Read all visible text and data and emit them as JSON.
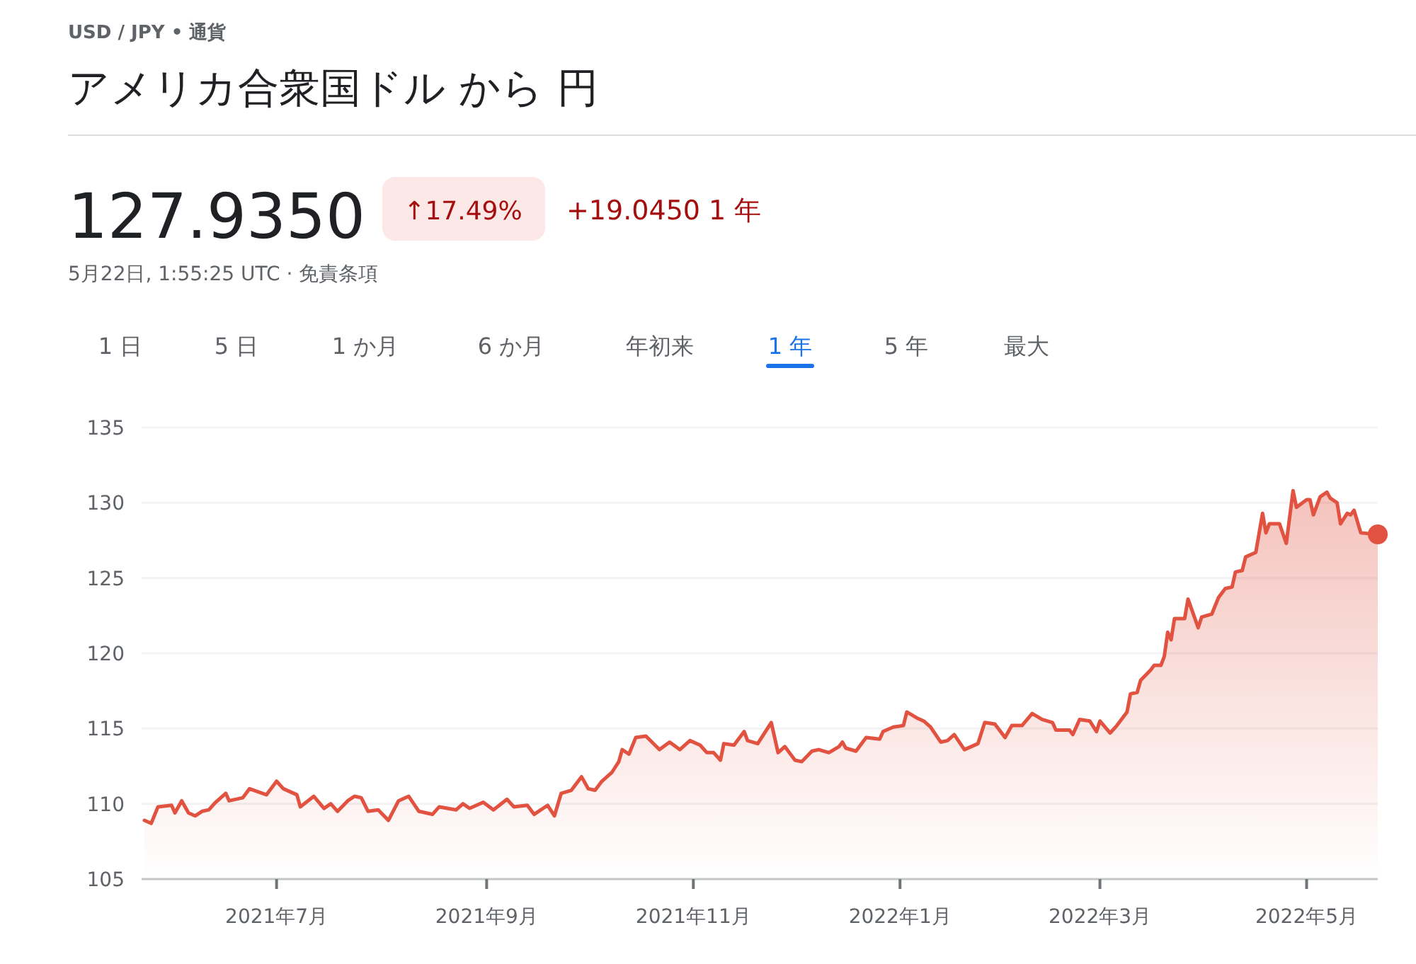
{
  "chart_data": {
    "type": "area",
    "subtitle": "USD / JPY • 通貨",
    "title": "アメリカ合衆国ドル から 円",
    "annotations": [
      "127.9350",
      "↑17.49%",
      "+19.0450 1 年",
      "5月22日, 1:55:25 UTC · 免責条項",
      "1 日",
      "5 日",
      "1 か月",
      "6 か月",
      "年初来",
      "1 年",
      "5 年",
      "最大"
    ],
    "x": [
      "2021-05-23",
      "2021-05-25",
      "2021-05-27",
      "2021-05-31",
      "2021-06-01",
      "2021-06-03",
      "2021-06-05",
      "2021-06-07",
      "2021-06-09",
      "2021-06-11",
      "2021-06-13",
      "2021-06-16",
      "2021-06-17",
      "2021-06-21",
      "2021-06-23",
      "2021-06-28",
      "2021-07-01",
      "2021-07-03",
      "2021-07-07",
      "2021-07-08",
      "2021-07-12",
      "2021-07-15",
      "2021-07-17",
      "2021-07-19",
      "2021-07-22",
      "2021-07-24",
      "2021-07-26",
      "2021-07-28",
      "2021-07-31",
      "2021-08-03",
      "2021-08-06",
      "2021-08-09",
      "2021-08-12",
      "2021-08-16",
      "2021-08-18",
      "2021-08-23",
      "2021-08-25",
      "2021-08-27",
      "2021-08-31",
      "2021-09-03",
      "2021-09-07",
      "2021-09-09",
      "2021-09-13",
      "2021-09-15",
      "2021-09-19",
      "2021-09-21",
      "2021-09-23",
      "2021-09-26",
      "2021-09-29",
      "2021-10-01",
      "2021-10-03",
      "2021-10-05",
      "2021-10-08",
      "2021-10-10",
      "2021-10-11",
      "2021-10-13",
      "2021-10-15",
      "2021-10-18",
      "2021-10-22",
      "2021-10-25",
      "2021-10-28",
      "2021-10-31",
      "2021-11-03",
      "2021-11-05",
      "2021-11-07",
      "2021-11-09",
      "2021-11-10",
      "2021-11-13",
      "2021-11-16",
      "2021-11-17",
      "2021-11-20",
      "2021-11-24",
      "2021-11-26",
      "2021-11-28",
      "2021-12-01",
      "2021-12-03",
      "2021-12-06",
      "2021-12-08",
      "2021-12-11",
      "2021-12-14",
      "2021-12-15",
      "2021-12-16",
      "2021-12-19",
      "2021-12-22",
      "2021-12-26",
      "2021-12-27",
      "2021-12-30",
      "2022-01-02",
      "2022-01-03",
      "2022-01-06",
      "2022-01-08",
      "2022-01-10",
      "2022-01-13",
      "2022-01-15",
      "2022-01-17",
      "2022-01-20",
      "2022-01-24",
      "2022-01-26",
      "2022-01-29",
      "2022-02-01",
      "2022-02-03",
      "2022-02-06",
      "2022-02-09",
      "2022-02-12",
      "2022-02-15",
      "2022-02-16",
      "2022-02-20",
      "2022-02-21",
      "2022-02-23",
      "2022-02-26",
      "2022-02-28",
      "2022-03-01",
      "2022-03-04",
      "2022-03-06",
      "2022-03-09",
      "2022-03-10",
      "2022-03-12",
      "2022-03-13",
      "2022-03-16",
      "2022-03-17",
      "2022-03-19",
      "2022-03-20",
      "2022-03-21",
      "2022-03-22",
      "2022-03-23",
      "2022-03-26",
      "2022-03-27",
      "2022-03-30",
      "2022-03-31",
      "2022-04-03",
      "2022-04-05",
      "2022-04-07",
      "2022-04-09",
      "2022-04-10",
      "2022-04-12",
      "2022-04-13",
      "2022-04-16",
      "2022-04-18",
      "2022-04-19",
      "2022-04-20",
      "2022-04-23",
      "2022-04-25",
      "2022-04-27",
      "2022-04-28",
      "2022-05-01",
      "2022-05-02",
      "2022-05-03",
      "2022-05-05",
      "2022-05-07",
      "2022-05-08",
      "2022-05-10",
      "2022-05-11",
      "2022-05-13",
      "2022-05-14",
      "2022-05-15",
      "2022-05-17",
      "2022-05-22"
    ],
    "series": [
      {
        "color": "#e15241",
        "values": [
          108.9,
          108.7,
          109.8,
          109.9,
          109.4,
          110.2,
          109.4,
          109.2,
          109.5,
          109.6,
          110.1,
          110.7,
          110.2,
          110.4,
          111.0,
          110.6,
          111.5,
          111.0,
          110.6,
          109.8,
          110.5,
          109.7,
          110.0,
          109.5,
          110.2,
          110.5,
          110.4,
          109.5,
          109.6,
          108.9,
          110.2,
          110.5,
          109.5,
          109.3,
          109.8,
          109.6,
          110.0,
          109.7,
          110.1,
          109.6,
          110.3,
          109.8,
          109.9,
          109.3,
          109.9,
          109.2,
          110.7,
          110.9,
          111.8,
          111.0,
          110.9,
          111.5,
          112.1,
          112.8,
          113.6,
          113.3,
          114.4,
          114.5,
          113.6,
          114.1,
          113.6,
          114.2,
          113.9,
          113.4,
          113.4,
          112.9,
          114.0,
          113.9,
          114.8,
          114.2,
          114.0,
          115.4,
          113.4,
          113.8,
          112.9,
          112.8,
          113.5,
          113.6,
          113.4,
          113.8,
          114.1,
          113.7,
          113.5,
          114.4,
          114.3,
          114.8,
          115.1,
          115.2,
          116.1,
          115.7,
          115.5,
          115.1,
          114.1,
          114.2,
          114.6,
          113.6,
          114.0,
          115.4,
          115.3,
          114.4,
          115.2,
          115.2,
          116.0,
          115.6,
          115.4,
          114.9,
          114.9,
          114.6,
          115.6,
          115.5,
          114.8,
          115.5,
          114.7,
          115.2,
          116.1,
          117.3,
          117.4,
          118.2,
          118.9,
          119.2,
          119.2,
          119.8,
          121.4,
          120.9,
          122.3,
          122.3,
          123.6,
          121.7,
          122.4,
          122.6,
          123.7,
          124.3,
          124.4,
          125.4,
          125.5,
          126.4,
          126.7,
          129.3,
          128.0,
          128.6,
          128.6,
          127.3,
          130.8,
          129.7,
          130.2,
          130.2,
          129.2,
          130.4,
          130.7,
          130.3,
          130.0,
          128.6,
          129.3,
          129.2,
          129.5,
          128.0,
          127.9
        ]
      },
      {
        "type": "scatter",
        "color": "#e15241",
        "marker": "circle",
        "x": [
          "2022-05-22"
        ],
        "values": [
          127.9
        ]
      }
    ],
    "xlim": [
      "2021-05-23",
      "2022-05-22"
    ],
    "xticks": [
      {
        "value": "2021-07-01",
        "label": "2021年7月"
      },
      {
        "value": "2021-09-01",
        "label": "2021年9月"
      },
      {
        "value": "2021-11-01",
        "label": "2021年11月"
      },
      {
        "value": "2022-01-01",
        "label": "2022年1月"
      },
      {
        "value": "2022-03-01",
        "label": "2022年3月"
      },
      {
        "value": "2022-05-01",
        "label": "2022年5月"
      }
    ],
    "ylim": [
      105,
      135
    ],
    "yticks": [
      105,
      110,
      115,
      120,
      125,
      130,
      135
    ],
    "grid": "y"
  }
}
